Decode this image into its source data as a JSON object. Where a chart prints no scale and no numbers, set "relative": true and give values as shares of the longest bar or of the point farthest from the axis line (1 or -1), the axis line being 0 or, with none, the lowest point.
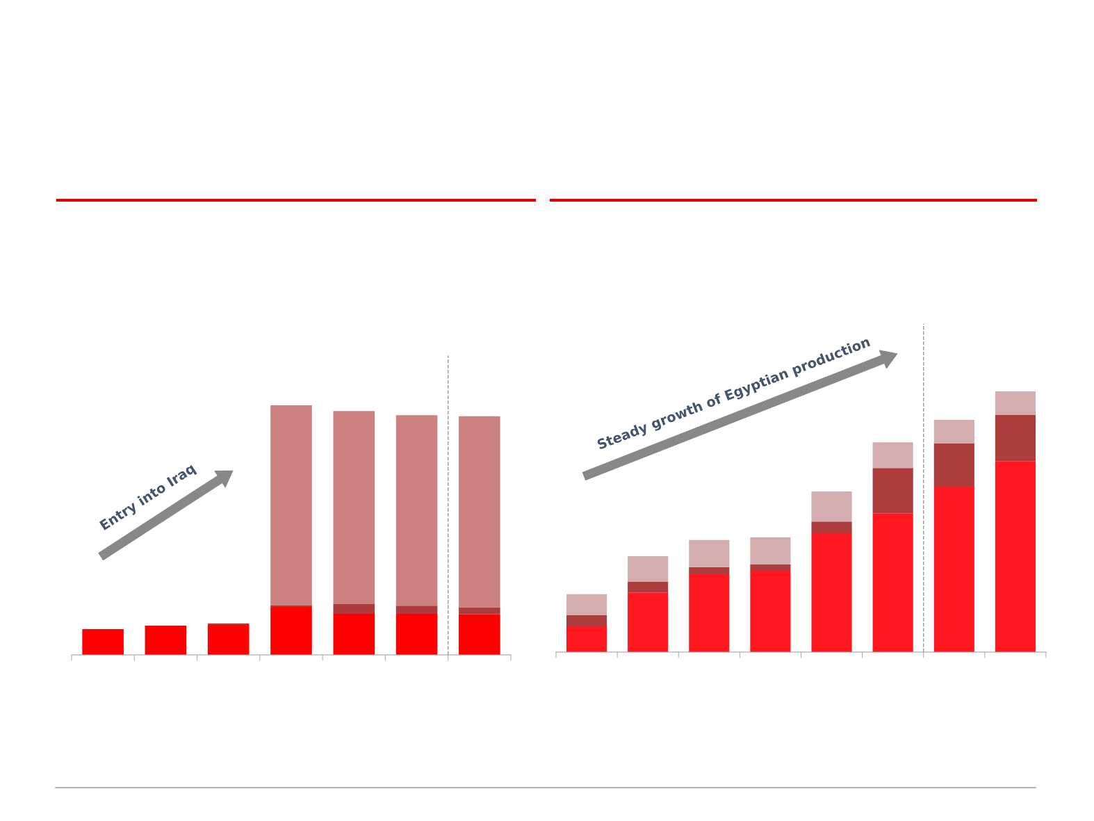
{
  "chart_data": [
    {
      "type": "bar",
      "stacked": true,
      "relative": true,
      "categories": [
        null,
        null,
        null,
        null,
        null,
        null,
        null
      ],
      "series": [
        {
          "color": "#ff0000",
          "values": [
            0.103,
            0.117,
            0.12,
            0.192,
            0.164,
            0.164,
            0.162
          ]
        },
        {
          "color": "#ad3b3b",
          "values": [
            0,
            0,
            0.006,
            0.006,
            0.039,
            0.033,
            0.028
          ]
        },
        {
          "color": "#cc8080",
          "values": [
            0,
            0,
            0,
            0.802,
            0.774,
            0.763,
            0.766
          ]
        }
      ],
      "annotations": [
        "Entry into Iraq"
      ],
      "grid": false,
      "legend": false
    },
    {
      "type": "bar",
      "stacked": true,
      "relative": true,
      "categories": [
        null,
        null,
        null,
        null,
        null,
        null,
        null,
        null
      ],
      "series": [
        {
          "color": "#ff1a22",
          "values": [
            0.099,
            0.229,
            0.299,
            0.312,
            0.456,
            0.533,
            0.635,
            0.733
          ]
        },
        {
          "color": "#ad3d3d",
          "values": [
            0.043,
            0.04,
            0.027,
            0.024,
            0.045,
            0.173,
            0.165,
            0.176
          ]
        },
        {
          "color": "#d4aeae",
          "values": [
            0.08,
            0.099,
            0.104,
            0.104,
            0.115,
            0.099,
            0.091,
            0.091
          ]
        }
      ],
      "annotations": [
        "Steady growth of Egyptian production"
      ],
      "grid": false,
      "legend": false
    }
  ]
}
